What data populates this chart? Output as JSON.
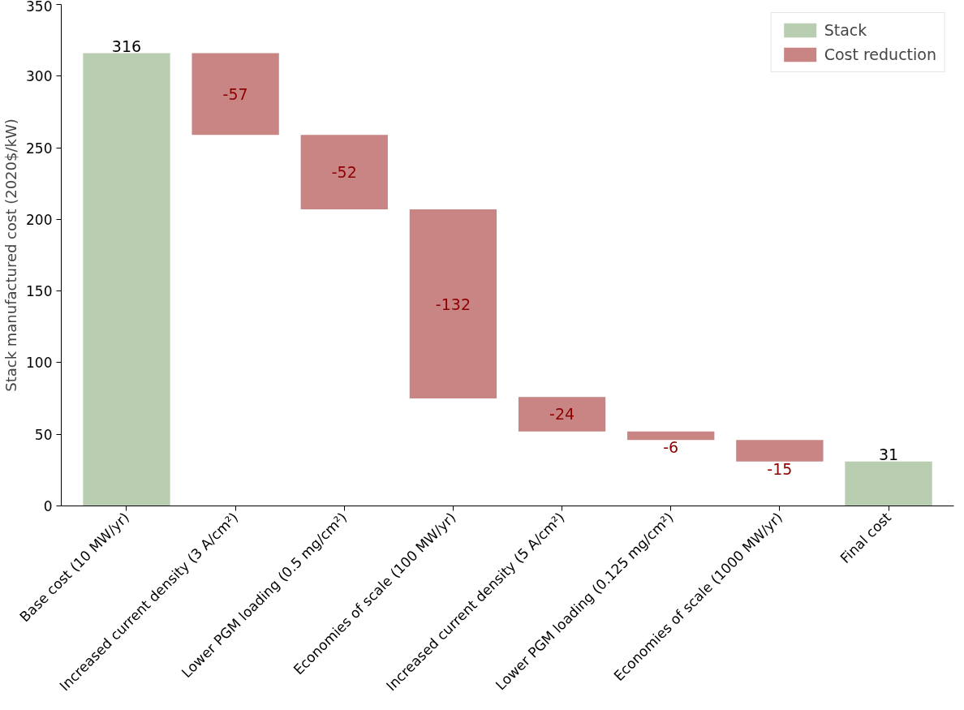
{
  "chart_data": {
    "type": "bar",
    "ylabel": "Stack manufactured cost (2020$/kW)",
    "categories": [
      "Base cost (10 MW/yr)",
      "Increased current density (3 A/cm²)",
      "Lower PGM loading (0.5 mg/cm²)",
      "Economies of scale (100 MW/yr)",
      "Increased current density (5 A/cm²)",
      "Lower PGM loading (0.125 mg/cm²)",
      "Economies of scale (1000 MW/yr)",
      "Final cost"
    ],
    "series": [
      {
        "name": "Stack",
        "color": "#b9cdb0",
        "values": [
          316,
          null,
          null,
          null,
          null,
          null,
          null,
          31
        ],
        "base": [
          0,
          null,
          null,
          null,
          null,
          null,
          null,
          0
        ]
      },
      {
        "name": "Cost reduction",
        "color": "#c98584",
        "values": [
          null,
          -57,
          -52,
          -132,
          -24,
          -6,
          -15,
          null
        ],
        "base": [
          null,
          316,
          259,
          207,
          76,
          52,
          46,
          null
        ]
      }
    ],
    "ylim": [
      0,
      350
    ],
    "yticks": [
      0,
      50,
      100,
      150,
      200,
      250,
      300,
      350
    ],
    "data_labels": true,
    "legend": "top right",
    "grid": false
  }
}
